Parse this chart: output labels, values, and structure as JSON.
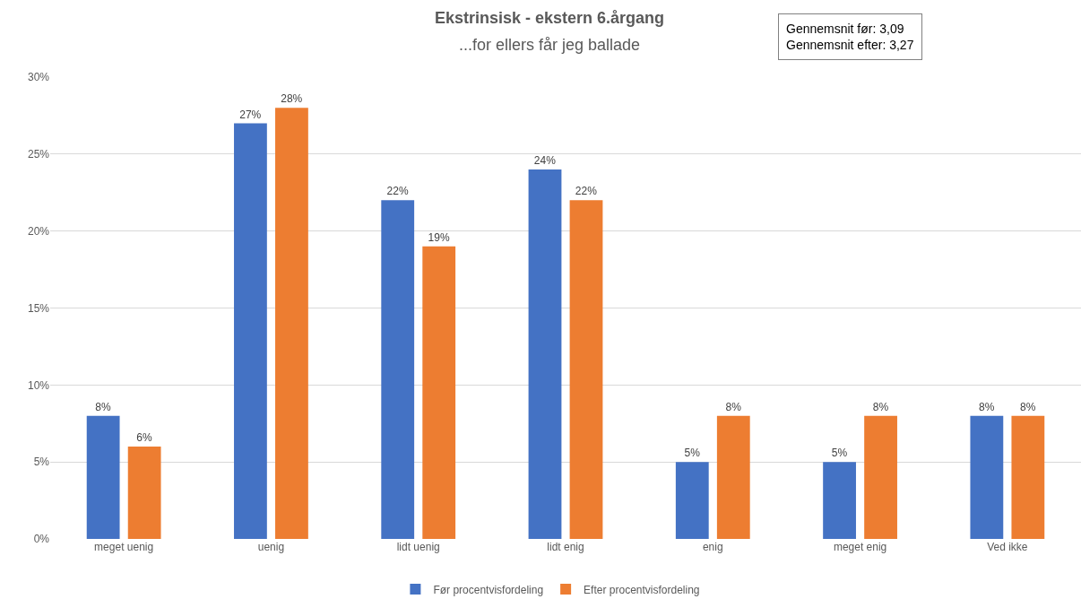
{
  "chart_data": {
    "type": "bar",
    "title": "Ekstrinsisk - ekstern 6.årgang",
    "subtitle": "...for ellers får jeg ballade",
    "annotations": [
      "Gennemsnit før: 3,09",
      "Gennemsnit efter: 3,27"
    ],
    "categories": [
      "meget uenig",
      "uenig",
      "lidt uenig",
      "lidt enig",
      "enig",
      "meget enig",
      "Ved ikke"
    ],
    "series": [
      {
        "name": "Før procentvisfordeling",
        "color": "#4472c4",
        "values": [
          8,
          27,
          22,
          24,
          5,
          5,
          8
        ],
        "value_labels": [
          "8%",
          "27%",
          "22%",
          "24%",
          "5%",
          "5%",
          "8%"
        ]
      },
      {
        "name": "Efter procentvisfordeling",
        "color": "#ed7d31",
        "values": [
          6,
          28,
          19,
          22,
          8,
          8,
          8
        ],
        "value_labels": [
          "6%",
          "28%",
          "19%",
          "22%",
          "8%",
          "8%",
          "8%"
        ]
      }
    ],
    "ylim": [
      0,
      30
    ],
    "yticks": [
      {
        "value": 0,
        "label": "0%"
      },
      {
        "value": 5,
        "label": "5%"
      },
      {
        "value": 10,
        "label": "10%"
      },
      {
        "value": 15,
        "label": "15%"
      },
      {
        "value": 20,
        "label": "20%"
      },
      {
        "value": 25,
        "label": "25%"
      },
      {
        "value": 30,
        "label": "30%"
      }
    ],
    "grid": "y",
    "legend": "bottom"
  }
}
